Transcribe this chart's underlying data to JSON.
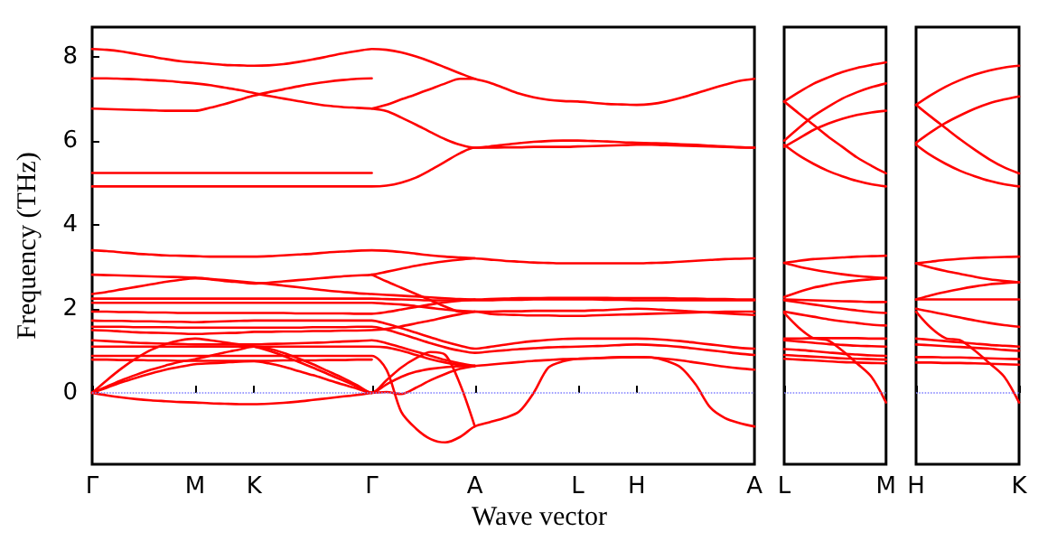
{
  "chart_data": [
    {
      "type": "line",
      "ylabel": "Frequency (THz)",
      "xlabel": "Wave vector",
      "categories": [
        "Γ",
        null,
        null,
        null,
        null,
        null,
        null,
        "M",
        null,
        null,
        null,
        "K",
        null,
        null,
        null,
        null,
        null,
        null,
        null,
        "Γ",
        null,
        null,
        null,
        null,
        null,
        null,
        "A",
        null,
        null,
        null,
        null,
        null,
        null,
        "L",
        null,
        null,
        null,
        "H",
        null,
        null,
        null,
        null,
        null,
        null,
        null,
        "A"
      ],
      "ylim": [
        -1.7,
        8.7
      ],
      "yticks": [
        0,
        2,
        4,
        6,
        8
      ],
      "grid": false,
      "ref_lines": [
        {
          "axis": "y",
          "value": 0,
          "color": "#8080ff",
          "line_style": "dotted"
        }
      ],
      "series": [
        {
          "color": "#ff0000",
          "values": [
            8.18,
            8.16,
            8.12,
            8.06,
            8.0,
            7.94,
            7.89,
            7.86,
            7.83,
            7.8,
            7.79,
            7.78,
            7.79,
            7.82,
            7.87,
            7.93,
            8.0,
            8.07,
            8.13,
            8.18,
            8.16,
            8.1,
            8.0,
            7.88,
            7.74,
            7.6,
            7.47,
            7.38,
            7.25,
            7.12,
            7.03,
            6.97,
            6.94,
            6.93,
            6.9,
            6.87,
            6.86,
            6.85,
            6.87,
            6.93,
            7.02,
            7.12,
            7.23,
            7.33,
            7.42,
            7.47
          ]
        },
        {
          "color": "#ff0000",
          "values": [
            7.48,
            7.48,
            7.47,
            7.46,
            7.44,
            7.42,
            7.39,
            7.36,
            7.32,
            7.26,
            7.2,
            7.13,
            7.06,
            7.0,
            6.94,
            6.88,
            6.83,
            6.8,
            6.78,
            6.76,
            6.7,
            6.55,
            6.38,
            6.2,
            6.03,
            5.9,
            5.83,
            5.86,
            5.9,
            5.94,
            5.97,
            5.99,
            6.0,
            6.0,
            5.99,
            5.98,
            5.96,
            5.95,
            5.94,
            5.93,
            5.91,
            5.9,
            5.88,
            5.86,
            5.84,
            5.83
          ]
        },
        {
          "color": "#ff0000",
          "values": [
            6.76,
            6.75,
            6.74,
            6.73,
            6.72,
            6.71,
            6.71,
            6.71,
            6.78,
            6.87,
            6.97,
            7.07,
            7.15,
            7.22,
            7.29,
            7.35,
            7.4,
            7.44,
            7.47,
            7.48,
            null,
            null,
            null,
            null,
            null,
            null,
            null,
            null,
            null,
            null,
            null,
            null,
            null,
            null,
            null,
            null,
            null,
            null,
            null,
            null,
            null,
            null,
            null,
            null,
            null,
            null
          ]
        },
        {
          "color": "#ff0000",
          "values": [
            null,
            null,
            null,
            null,
            null,
            null,
            null,
            null,
            null,
            null,
            null,
            null,
            null,
            null,
            null,
            null,
            null,
            null,
            null,
            6.76,
            6.85,
            6.98,
            7.1,
            7.23,
            7.36,
            7.47,
            7.47,
            null,
            null,
            null,
            null,
            null,
            null,
            null,
            null,
            null,
            null,
            null,
            null,
            null,
            null,
            null,
            null,
            null,
            null,
            null
          ]
        },
        {
          "color": "#ff0000",
          "values": [
            5.23,
            5.23,
            5.23,
            5.23,
            5.23,
            5.23,
            5.23,
            5.23,
            5.23,
            5.23,
            5.23,
            5.23,
            5.23,
            5.23,
            5.23,
            5.23,
            5.23,
            5.23,
            5.23,
            5.23,
            null,
            null,
            null,
            null,
            null,
            null,
            null,
            null,
            null,
            null,
            null,
            null,
            null,
            null,
            null,
            null,
            null,
            null,
            null,
            null,
            null,
            null,
            null,
            null,
            null,
            null
          ]
        },
        {
          "color": "#ff0000",
          "values": [
            4.91,
            4.91,
            4.91,
            4.91,
            4.91,
            4.91,
            4.91,
            4.91,
            4.91,
            4.91,
            4.91,
            4.91,
            4.91,
            4.91,
            4.91,
            4.91,
            4.91,
            4.91,
            4.91,
            4.91,
            4.93,
            5.0,
            5.12,
            5.3,
            5.5,
            5.7,
            5.83,
            5.83,
            5.84,
            5.84,
            5.85,
            5.85,
            5.85,
            5.86,
            5.87,
            5.88,
            5.89,
            5.9,
            5.9,
            5.89,
            5.88,
            5.87,
            5.86,
            5.85,
            5.84,
            5.83
          ]
        },
        {
          "color": "#ff0000",
          "values": [
            3.39,
            3.37,
            3.34,
            3.31,
            3.29,
            3.27,
            3.26,
            3.25,
            3.24,
            3.24,
            3.24,
            3.24,
            3.25,
            3.27,
            3.29,
            3.31,
            3.34,
            3.36,
            3.38,
            3.39,
            3.38,
            3.35,
            3.31,
            3.27,
            3.24,
            3.22,
            3.2,
            3.17,
            3.14,
            3.12,
            3.1,
            3.09,
            3.08,
            3.08,
            3.08,
            3.08,
            3.08,
            3.08,
            3.09,
            3.1,
            3.12,
            3.14,
            3.16,
            3.18,
            3.19,
            3.2
          ]
        },
        {
          "color": "#ff0000",
          "values": [
            2.81,
            2.8,
            2.79,
            2.78,
            2.77,
            2.76,
            2.75,
            2.74,
            2.71,
            2.68,
            2.65,
            2.62,
            2.59,
            2.55,
            2.51,
            2.47,
            2.43,
            2.4,
            2.37,
            2.35,
            2.33,
            2.31,
            2.29,
            2.27,
            2.25,
            2.23,
            2.22,
            2.23,
            2.24,
            2.25,
            2.25,
            2.26,
            2.26,
            2.26,
            2.26,
            2.26,
            2.25,
            2.25,
            2.25,
            2.25,
            2.24,
            2.24,
            2.23,
            2.23,
            2.22,
            2.22
          ]
        },
        {
          "color": "#ff0000",
          "values": [
            2.35,
            2.4,
            2.46,
            2.52,
            2.58,
            2.64,
            2.69,
            2.72,
            2.7,
            2.66,
            2.63,
            2.6,
            2.62,
            2.65,
            2.68,
            2.71,
            2.74,
            2.77,
            2.79,
            2.81,
            2.88,
            2.95,
            3.02,
            3.08,
            3.13,
            3.17,
            3.2,
            null,
            null,
            null,
            null,
            null,
            null,
            null,
            null,
            null,
            null,
            null,
            null,
            null,
            null,
            null,
            null,
            null,
            null,
            null
          ]
        },
        {
          "color": "#ff0000",
          "values": [
            2.24,
            2.24,
            2.24,
            2.24,
            2.24,
            2.24,
            2.24,
            2.24,
            2.24,
            2.24,
            2.24,
            2.24,
            2.24,
            2.24,
            2.24,
            2.24,
            2.24,
            2.24,
            2.24,
            2.24,
            2.23,
            2.22,
            2.21,
            2.2,
            2.2,
            2.2,
            2.2,
            2.2,
            2.21,
            2.21,
            2.22,
            2.22,
            2.22,
            2.22,
            2.22,
            2.21,
            2.21,
            2.2,
            2.2,
            2.2,
            2.2,
            2.2,
            2.2,
            2.2,
            2.2,
            2.2
          ]
        },
        {
          "color": "#ff0000",
          "values": [
            2.14,
            2.14,
            2.14,
            2.14,
            2.14,
            2.14,
            2.14,
            2.14,
            2.14,
            2.14,
            2.14,
            2.14,
            2.14,
            2.14,
            2.14,
            2.14,
            2.14,
            2.14,
            2.14,
            2.14,
            2.12,
            2.1,
            2.06,
            2.02,
            1.98,
            1.95,
            1.93,
            1.93,
            1.94,
            1.94,
            1.95,
            1.95,
            1.95,
            1.95,
            1.96,
            1.97,
            1.99,
            2.0,
            1.99,
            1.97,
            1.95,
            1.93,
            1.91,
            1.89,
            1.87,
            1.85
          ]
        },
        {
          "color": "#ff0000",
          "values": [
            null,
            null,
            null,
            null,
            null,
            null,
            null,
            null,
            null,
            null,
            null,
            null,
            null,
            null,
            null,
            null,
            null,
            null,
            null,
            2.81,
            2.65,
            2.5,
            2.35,
            2.2,
            2.05,
            1.93,
            1.93,
            1.88,
            1.86,
            1.85,
            1.84,
            1.84,
            1.83,
            1.83,
            1.84,
            1.85,
            1.86,
            1.87,
            1.88,
            1.89,
            1.9,
            1.91,
            1.92,
            1.93,
            1.93,
            1.93
          ]
        },
        {
          "color": "#ff0000",
          "values": [
            1.93,
            1.93,
            1.92,
            1.92,
            1.91,
            1.91,
            1.9,
            1.9,
            1.9,
            1.9,
            1.9,
            1.9,
            1.9,
            1.9,
            1.89,
            1.89,
            1.89,
            1.89,
            1.88,
            1.88,
            1.92,
            1.98,
            2.04,
            2.1,
            2.15,
            2.19,
            2.22,
            null,
            null,
            null,
            null,
            null,
            null,
            null,
            null,
            null,
            null,
            null,
            null,
            null,
            null,
            null,
            null,
            null,
            null,
            null
          ]
        },
        {
          "color": "#ff0000",
          "values": [
            1.72,
            1.71,
            1.71,
            1.7,
            1.7,
            1.69,
            1.69,
            1.68,
            1.69,
            1.7,
            1.71,
            1.72,
            1.72,
            1.72,
            1.72,
            1.72,
            1.72,
            1.72,
            1.72,
            1.72,
            1.64,
            1.54,
            1.43,
            1.32,
            1.21,
            1.12,
            1.05,
            1.09,
            1.14,
            1.19,
            1.23,
            1.26,
            1.28,
            1.29,
            1.29,
            1.29,
            1.29,
            1.29,
            1.28,
            1.26,
            1.23,
            1.19,
            1.15,
            1.11,
            1.07,
            1.05
          ]
        },
        {
          "color": "#ff0000",
          "values": [
            1.57,
            1.57,
            1.57,
            1.56,
            1.56,
            1.56,
            1.55,
            1.55,
            1.55,
            1.55,
            1.55,
            1.55,
            1.55,
            1.55,
            1.55,
            1.56,
            1.56,
            1.56,
            1.57,
            1.57,
            1.5,
            1.4,
            1.29,
            1.18,
            1.08,
            1.0,
            0.95,
            0.98,
            1.01,
            1.04,
            1.06,
            1.08,
            1.09,
            1.1,
            1.11,
            1.12,
            1.14,
            1.15,
            1.14,
            1.12,
            1.09,
            1.05,
            1.01,
            0.97,
            0.93,
            0.9
          ]
        },
        {
          "color": "#ff0000",
          "values": [
            1.49,
            1.48,
            1.46,
            1.44,
            1.43,
            1.42,
            1.41,
            1.4,
            1.41,
            1.42,
            1.43,
            1.45,
            1.45,
            1.46,
            1.46,
            1.47,
            1.47,
            1.48,
            1.48,
            1.49,
            1.52,
            1.58,
            1.65,
            1.72,
            1.8,
            1.87,
            1.93,
            null,
            null,
            null,
            null,
            null,
            null,
            null,
            null,
            null,
            null,
            null,
            null,
            null,
            null,
            null,
            null,
            null,
            null,
            null
          ]
        },
        {
          "color": "#ff0000",
          "values": [
            1.25,
            1.23,
            1.21,
            1.19,
            1.18,
            1.17,
            1.16,
            1.15,
            1.15,
            1.15,
            1.15,
            1.15,
            1.16,
            1.17,
            1.18,
            1.19,
            1.2,
            1.22,
            1.23,
            1.25,
            1.18,
            1.08,
            0.98,
            0.88,
            0.78,
            0.7,
            0.64,
            null,
            null,
            null,
            null,
            null,
            null,
            null,
            null,
            null,
            null,
            null,
            null,
            null,
            null,
            null,
            null,
            null,
            null,
            null
          ]
        },
        {
          "color": "#ff0000",
          "values": [
            1.1,
            1.1,
            1.1,
            1.1,
            1.1,
            1.1,
            1.1,
            1.1,
            1.1,
            1.1,
            1.1,
            1.1,
            1.1,
            1.1,
            1.1,
            1.1,
            1.1,
            1.1,
            1.1,
            1.1,
            1.08,
            1.0,
            0.9,
            0.8,
            0.72,
            0.66,
            0.64,
            null,
            null,
            null,
            null,
            null,
            null,
            null,
            null,
            null,
            null,
            null,
            null,
            null,
            null,
            null,
            null,
            null,
            null,
            null
          ]
        },
        {
          "color": "#ff0000",
          "values": [
            0.88,
            0.88,
            0.88,
            0.88,
            0.88,
            0.88,
            0.88,
            0.88,
            0.88,
            0.88,
            0.88,
            0.88,
            0.88,
            0.88,
            0.88,
            0.88,
            0.88,
            0.88,
            0.88,
            0.88,
            0.55,
            -0.45,
            -0.85,
            -1.1,
            -1.18,
            -1.05,
            -0.8,
            -0.7,
            -0.6,
            -0.45,
            0,
            0.6,
            0.75,
            0.81,
            0.82,
            0.84,
            0.85,
            0.85,
            0.84,
            0.76,
            0.6,
            0.2,
            -0.35,
            -0.6,
            -0.72,
            -0.8
          ]
        },
        {
          "color": "#ff0000",
          "values": [
            0.79,
            0.79,
            0.78,
            0.78,
            0.77,
            0.77,
            0.76,
            0.76,
            0.76,
            0.76,
            0.76,
            0.76,
            0.76,
            0.77,
            0.77,
            0.77,
            0.78,
            0.78,
            0.79,
            0.79,
            null,
            null,
            null,
            null,
            null,
            null,
            null,
            null,
            null,
            null,
            null,
            null,
            null,
            null,
            null,
            null,
            null,
            null,
            null,
            null,
            null,
            null,
            null,
            null,
            null,
            null
          ]
        },
        {
          "color": "#ff0000",
          "values": [
            0,
            0.3,
            0.58,
            0.82,
            1.02,
            1.16,
            1.25,
            1.29,
            1.25,
            1.2,
            1.15,
            1.1,
            1.0,
            0.88,
            0.74,
            0.6,
            0.45,
            0.3,
            0.15,
            0,
            0.3,
            0.6,
            0.82,
            0.97,
            0.9,
            0.2,
            -0.8,
            null,
            null,
            null,
            null,
            null,
            null,
            null,
            null,
            null,
            null,
            null,
            null,
            null,
            null,
            null,
            null,
            null,
            null,
            null
          ]
        },
        {
          "color": "#ff0000",
          "values": [
            0,
            0.15,
            0.3,
            0.43,
            0.55,
            0.65,
            0.74,
            0.8,
            0.88,
            0.96,
            1.03,
            1.1,
            1.05,
            0.95,
            0.82,
            0.68,
            0.52,
            0.36,
            0.18,
            0,
            0.2,
            0.38,
            0.5,
            0.57,
            0.61,
            0.63,
            0.64,
            0.67,
            0.7,
            0.73,
            0.76,
            0.78,
            0.8,
            0.81,
            0.82,
            0.83,
            0.84,
            0.85,
            0.84,
            0.81,
            0.77,
            0.72,
            0.67,
            0.62,
            0.58,
            0.55
          ]
        },
        {
          "color": "#ff0000",
          "values": [
            0,
            0.12,
            0.25,
            0.36,
            0.46,
            0.55,
            0.62,
            0.68,
            0.7,
            0.72,
            0.74,
            0.75,
            0.7,
            0.62,
            0.52,
            0.42,
            0.31,
            0.2,
            0.1,
            0,
            0.02,
            -0.03,
            0.12,
            0.3,
            0.45,
            0.57,
            0.64,
            null,
            null,
            null,
            null,
            null,
            null,
            null,
            null,
            null,
            null,
            null,
            null,
            null,
            null,
            null,
            null,
            null,
            null,
            null
          ]
        },
        {
          "color": "#ff0000",
          "values": [
            0,
            -0.06,
            -0.11,
            -0.15,
            -0.18,
            -0.2,
            -0.22,
            -0.23,
            -0.25,
            -0.26,
            -0.27,
            -0.27,
            -0.26,
            -0.24,
            -0.21,
            -0.17,
            -0.13,
            -0.09,
            -0.05,
            0,
            null,
            null,
            null,
            null,
            null,
            null,
            null,
            null,
            null,
            null,
            null,
            null,
            null,
            null,
            null,
            null,
            null,
            null,
            null,
            null,
            null,
            null,
            null,
            null,
            null,
            null
          ]
        }
      ]
    },
    {
      "type": "line",
      "categories": [
        "L",
        null,
        null,
        null,
        null,
        null,
        null,
        "M"
      ],
      "ylim": [
        -1.7,
        8.7
      ],
      "yticks": [
        0,
        2,
        4,
        6,
        8
      ],
      "tick_labels": "x",
      "grid": false,
      "ref_lines": [
        {
          "axis": "y",
          "value": 0,
          "color": "#8080ff",
          "line_style": "dotted"
        }
      ],
      "series": [
        {
          "color": "#ff0000",
          "values": [
            6.93,
            7.15,
            7.35,
            7.5,
            7.63,
            7.73,
            7.8,
            7.86
          ]
        },
        {
          "color": "#ff0000",
          "values": [
            6.93,
            6.65,
            6.38,
            6.1,
            5.85,
            5.6,
            5.4,
            5.22
          ]
        },
        {
          "color": "#ff0000",
          "values": [
            6.0,
            6.3,
            6.58,
            6.8,
            7.0,
            7.15,
            7.27,
            7.36
          ]
        },
        {
          "color": "#ff0000",
          "values": [
            5.9,
            5.65,
            5.45,
            5.28,
            5.15,
            5.04,
            4.96,
            4.91
          ]
        },
        {
          "color": "#ff0000",
          "values": [
            5.85,
            6.05,
            6.25,
            6.4,
            6.52,
            6.61,
            6.67,
            6.71
          ]
        },
        {
          "color": "#ff0000",
          "values": [
            3.09,
            3.14,
            3.18,
            3.2,
            3.22,
            3.24,
            3.25,
            3.26
          ]
        },
        {
          "color": "#ff0000",
          "values": [
            3.09,
            3.0,
            2.93,
            2.87,
            2.82,
            2.78,
            2.75,
            2.73
          ]
        },
        {
          "color": "#ff0000",
          "values": [
            2.28,
            2.4,
            2.5,
            2.57,
            2.63,
            2.67,
            2.7,
            2.73
          ]
        },
        {
          "color": "#ff0000",
          "values": [
            2.22,
            2.21,
            2.2,
            2.19,
            2.18,
            2.17,
            2.16,
            2.16
          ]
        },
        {
          "color": "#ff0000",
          "values": [
            2.2,
            2.15,
            2.1,
            2.05,
            2.0,
            1.96,
            1.92,
            1.9
          ]
        },
        {
          "color": "#ff0000",
          "values": [
            1.93,
            1.87,
            1.81,
            1.75,
            1.7,
            1.66,
            1.62,
            1.6
          ]
        },
        {
          "color": "#ff0000",
          "values": [
            1.9,
            1.55,
            1.3,
            1.25,
            1.0,
            0.7,
            0.38,
            -0.23
          ]
        },
        {
          "color": "#ff0000",
          "values": [
            1.29,
            1.29,
            1.3,
            1.3,
            1.3,
            1.3,
            1.29,
            1.29
          ]
        },
        {
          "color": "#ff0000",
          "values": [
            1.25,
            1.22,
            1.19,
            1.16,
            1.14,
            1.12,
            1.11,
            1.1
          ]
        },
        {
          "color": "#ff0000",
          "values": [
            1.04,
            1.02,
            0.99,
            0.96,
            0.93,
            0.91,
            0.89,
            0.88
          ]
        },
        {
          "color": "#ff0000",
          "values": [
            0.9,
            0.88,
            0.86,
            0.84,
            0.82,
            0.81,
            0.8,
            0.79
          ]
        },
        {
          "color": "#ff0000",
          "values": [
            0.81,
            0.79,
            0.77,
            0.75,
            0.73,
            0.72,
            0.71,
            0.7
          ]
        }
      ]
    },
    {
      "type": "line",
      "categories": [
        "H",
        null,
        null,
        null,
        null,
        null,
        null,
        "K"
      ],
      "ylim": [
        -1.7,
        8.7
      ],
      "yticks": [
        0,
        2,
        4,
        6,
        8
      ],
      "tick_labels": "x",
      "grid": false,
      "ref_lines": [
        {
          "axis": "y",
          "value": 0,
          "color": "#8080ff",
          "line_style": "dotted"
        }
      ],
      "series": [
        {
          "color": "#ff0000",
          "values": [
            6.85,
            7.08,
            7.28,
            7.44,
            7.57,
            7.67,
            7.74,
            7.78
          ]
        },
        {
          "color": "#ff0000",
          "values": [
            6.85,
            6.57,
            6.3,
            6.03,
            5.78,
            5.55,
            5.36,
            5.22
          ]
        },
        {
          "color": "#ff0000",
          "values": [
            5.95,
            6.2,
            6.42,
            6.6,
            6.76,
            6.89,
            6.98,
            7.05
          ]
        },
        {
          "color": "#ff0000",
          "values": [
            5.9,
            5.65,
            5.45,
            5.28,
            5.15,
            5.04,
            4.96,
            4.91
          ]
        },
        {
          "color": "#ff0000",
          "values": [
            3.08,
            3.12,
            3.16,
            3.19,
            3.21,
            3.22,
            3.23,
            3.24
          ]
        },
        {
          "color": "#ff0000",
          "values": [
            3.08,
            2.98,
            2.9,
            2.83,
            2.76,
            2.7,
            2.66,
            2.63
          ]
        },
        {
          "color": "#ff0000",
          "values": [
            2.22,
            2.32,
            2.4,
            2.47,
            2.53,
            2.58,
            2.61,
            2.63
          ]
        },
        {
          "color": "#ff0000",
          "values": [
            2.22,
            2.22,
            2.22,
            2.22,
            2.22,
            2.22,
            2.22,
            2.22
          ]
        },
        {
          "color": "#ff0000",
          "values": [
            2.0,
            1.93,
            1.86,
            1.79,
            1.72,
            1.66,
            1.61,
            1.57
          ]
        },
        {
          "color": "#ff0000",
          "values": [
            1.93,
            1.55,
            1.3,
            1.25,
            1.0,
            0.7,
            0.38,
            -0.23
          ]
        },
        {
          "color": "#ff0000",
          "values": [
            1.29,
            1.26,
            1.23,
            1.2,
            1.17,
            1.14,
            1.12,
            1.1
          ]
        },
        {
          "color": "#ff0000",
          "values": [
            1.15,
            1.13,
            1.11,
            1.09,
            1.07,
            1.05,
            1.02,
            1.0
          ]
        },
        {
          "color": "#ff0000",
          "values": [
            0.85,
            0.85,
            0.84,
            0.84,
            0.83,
            0.82,
            0.81,
            0.8
          ]
        },
        {
          "color": "#ff0000",
          "values": [
            0.72,
            0.72,
            0.71,
            0.71,
            0.7,
            0.69,
            0.68,
            0.67
          ]
        }
      ]
    }
  ]
}
